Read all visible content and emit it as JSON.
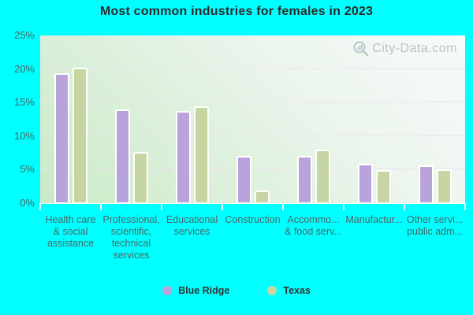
{
  "title": "Most common industries for females in 2023",
  "watermark": "City-Data.com",
  "colors": {
    "background": "#00ffff",
    "blue_ridge_bar": "#b8a4da",
    "texas_bar": "#c6d5a1",
    "axis_text": "#4a6868",
    "title_text": "#2b2b2b"
  },
  "legend": [
    {
      "label": "Blue Ridge",
      "color": "#b8a4da"
    },
    {
      "label": "Texas",
      "color": "#c6d5a1"
    }
  ],
  "chart_data": {
    "type": "bar",
    "title": "Most common industries for females in 2023",
    "categories": [
      "Health care\n& social\nassistance",
      "Professional,\nscientific,\ntechnical\nservices",
      "Educational\nservices",
      "Construction",
      "Accommo...\n& food serv...",
      "Manufactur...",
      "Other servi...\npublic adm..."
    ],
    "series": [
      {
        "name": "Blue Ridge",
        "color": "#b8a4da",
        "values": [
          19.4,
          14.0,
          13.7,
          7.0,
          7.0,
          5.9,
          5.6
        ]
      },
      {
        "name": "Texas",
        "color": "#c6d5a1",
        "values": [
          20.2,
          7.6,
          14.4,
          1.9,
          8.0,
          4.9,
          5.0
        ]
      }
    ],
    "xlabel": "",
    "ylabel": "",
    "ylim": [
      0,
      25
    ],
    "yticks": [
      "0%",
      "5%",
      "10%",
      "15%",
      "20%",
      "25%"
    ],
    "grid": true,
    "legend_position": "bottom"
  }
}
